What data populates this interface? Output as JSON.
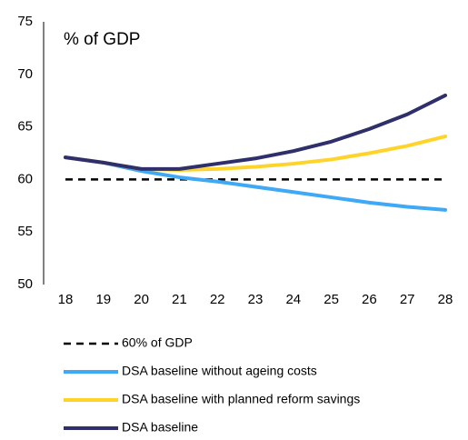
{
  "chart_data": {
    "type": "line",
    "annotation": "% of GDP",
    "categories": [
      "18",
      "19",
      "20",
      "21",
      "22",
      "23",
      "24",
      "25",
      "26",
      "27",
      "28"
    ],
    "series": [
      {
        "name": "60% of GDP",
        "color": "#000000",
        "dashed": true,
        "values": [
          60,
          60,
          60,
          60,
          60,
          60,
          60,
          60,
          60,
          60,
          60
        ]
      },
      {
        "name": "DSA baseline without ageing costs",
        "color": "#3fa9f5",
        "dashed": false,
        "values": [
          62.1,
          61.6,
          60.8,
          60.2,
          59.8,
          59.3,
          58.8,
          58.3,
          57.8,
          57.4,
          57.1
        ]
      },
      {
        "name": "DSA baseline with planned  reform savings",
        "color": "#ffd42a",
        "dashed": false,
        "values": [
          62.1,
          61.6,
          61.0,
          60.9,
          61.0,
          61.2,
          61.5,
          61.9,
          62.5,
          63.2,
          64.1
        ]
      },
      {
        "name": "DSA baseline",
        "color": "#2e2f6b",
        "dashed": false,
        "values": [
          62.1,
          61.6,
          61.0,
          61.0,
          61.5,
          62.0,
          62.7,
          63.6,
          64.8,
          66.2,
          68.0
        ]
      }
    ],
    "ylim": [
      50,
      75
    ],
    "yticks": [
      50,
      55,
      60,
      65,
      70,
      75
    ],
    "grid": false
  }
}
